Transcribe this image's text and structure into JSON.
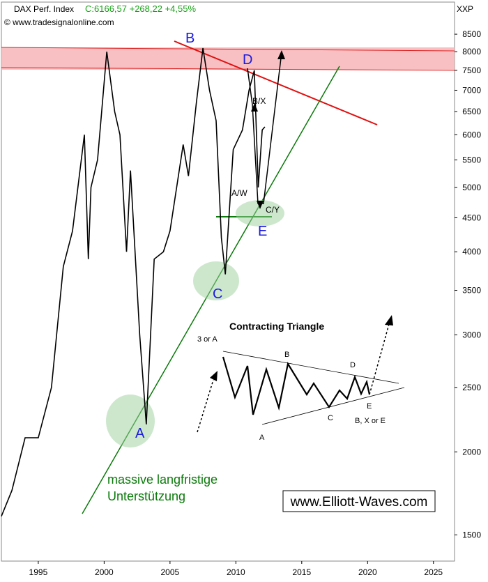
{
  "chart_data": {
    "type": "line",
    "title": "DAX Perf. Index",
    "subtitle": "C:6166,57 +268,22 +4,55%",
    "source": "© www.tradesignalonline.com",
    "symbol": "XXP",
    "log_y": true,
    "grid": false,
    "x": [
      1992.2,
      1993.0,
      1994.0,
      1995.0,
      1996.0,
      1996.9,
      1997.6,
      1998.5,
      1998.8,
      1999.0,
      1999.5,
      2000.2,
      2000.8,
      2001.2,
      2001.7,
      2002.0,
      2002.7,
      2003.2,
      2003.8,
      2004.5,
      2005.0,
      2006.0,
      2006.4,
      2007.0,
      2007.5,
      2008.0,
      2008.5,
      2008.9,
      2009.2,
      2009.8,
      2010.5,
      2011.0,
      2011.4,
      2011.7,
      2012.0,
      2012.2
    ],
    "series": [
      {
        "name": "DAX Perf. Index",
        "color": "#000000",
        "values": [
          1600,
          1750,
          2100,
          2100,
          2500,
          3800,
          4300,
          6000,
          3900,
          5000,
          5500,
          8000,
          6500,
          6000,
          4000,
          5300,
          3000,
          2200,
          3900,
          4000,
          4300,
          5800,
          5200,
          6700,
          8100,
          7000,
          6300,
          4200,
          3700,
          5700,
          6100,
          7000,
          7500,
          5000,
          6100,
          6166
        ]
      }
    ],
    "xlim": [
      1992.2,
      2026.6
    ],
    "xticks": [
      1995,
      2000,
      2005,
      2010,
      2015,
      2020,
      2025
    ],
    "ylim": [
      1370,
      9500
    ],
    "yticks": [
      1500,
      2000,
      2500,
      3000,
      3500,
      4000,
      4500,
      5000,
      5500,
      6000,
      6500,
      7000,
      7500,
      8000,
      8500
    ],
    "annotations": {
      "wave_a": "A",
      "wave_b": "B",
      "wave_c": "C",
      "wave_d": "D",
      "wave_e": "E",
      "aw": "A/W",
      "bx": "B/X",
      "cy": "C/Y",
      "triangle_title": "Contracting Triangle",
      "t_3a": "3 or A",
      "t_b": "B",
      "t_d": "D",
      "t_c": "C",
      "t_e": "E",
      "t_a": "A",
      "t_bxe": "B, X or E",
      "support_1": "massive langfristige",
      "support_2": "Unterstützung",
      "website": "www.Elliott-Waves.com"
    }
  }
}
